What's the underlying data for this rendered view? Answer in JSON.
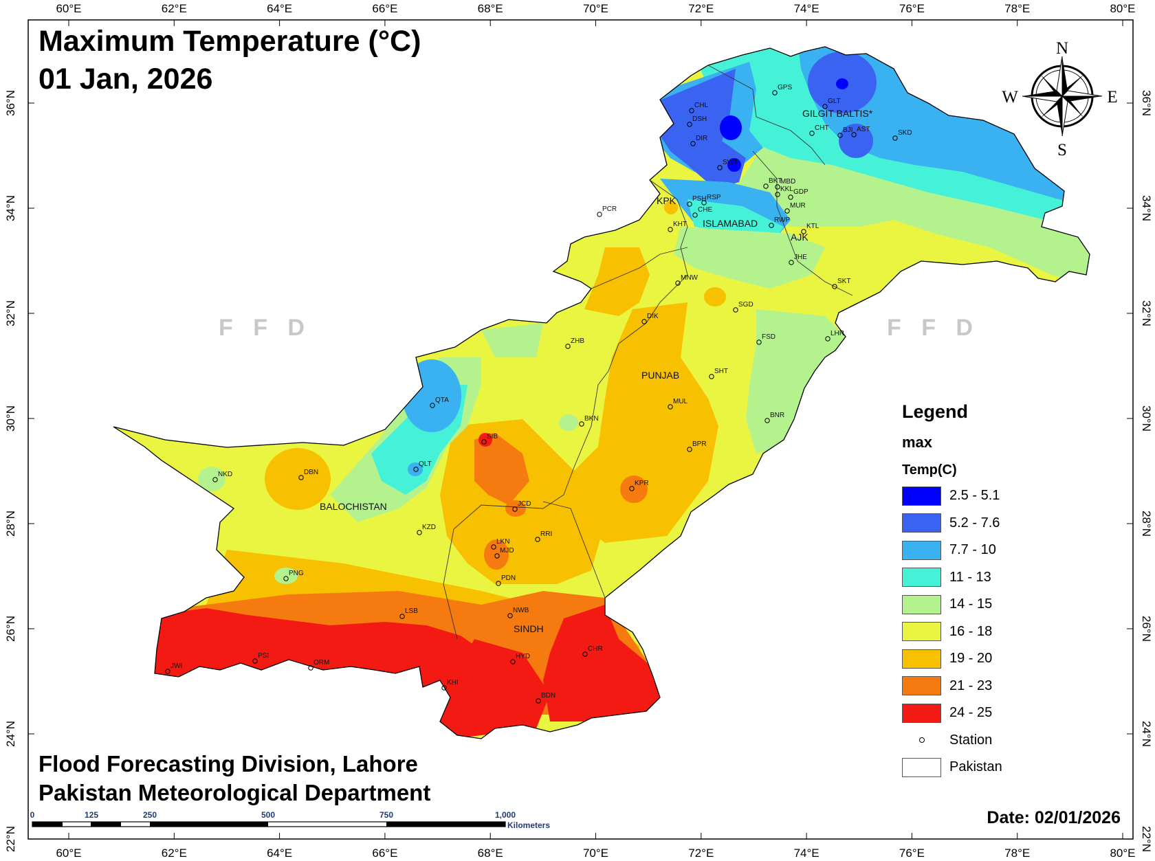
{
  "map": {
    "title_line1": "Maximum Temperature (°C)",
    "title_line2": "01 Jan, 2026",
    "credit_line1": "Flood Forecasting Division, Lahore",
    "credit_line2": "Pakistan Meteorological Department",
    "date": "Date: 02/01/2026",
    "watermark": "F F D"
  },
  "axes": {
    "longitudes": [
      "60°E",
      "62°E",
      "64°E",
      "66°E",
      "68°E",
      "70°E",
      "72°E",
      "74°E",
      "76°E",
      "78°E",
      "80°E"
    ],
    "latitudes": [
      "36°N",
      "34°N",
      "32°N",
      "30°N",
      "28°N",
      "26°N",
      "24°N",
      "22°N"
    ]
  },
  "regions": {
    "gilgit": "GILGIT BALTIS*",
    "kpk": "KPK",
    "islamabad": "ISLAMABAD",
    "ajk": "AJK",
    "punjab": "PUNJAB",
    "balochistan": "BALOCHISTAN",
    "sindh": "SINDH"
  },
  "compass": {
    "n": "N",
    "s": "S",
    "e": "E",
    "w": "W"
  },
  "legend": {
    "title": "Legend",
    "field": "max",
    "unit": "Temp(C)",
    "classes": [
      {
        "label": "2.5 - 5.1",
        "color": "#0000ff"
      },
      {
        "label": "5.2 - 7.6",
        "color": "#3b63f2"
      },
      {
        "label": "7.7 - 10",
        "color": "#3ab2f2"
      },
      {
        "label": "11 - 13",
        "color": "#45f2d8"
      },
      {
        "label": "14 - 15",
        "color": "#b4f28e"
      },
      {
        "label": "16 - 18",
        "color": "#eaf542"
      },
      {
        "label": "19 - 20",
        "color": "#f7c000"
      },
      {
        "label": "21 - 23",
        "color": "#f57a10"
      },
      {
        "label": "24 - 25",
        "color": "#f41a14"
      }
    ],
    "station": "Station",
    "country": "Pakistan"
  },
  "scale_bar": {
    "labels": [
      "0",
      "125",
      "250",
      "500",
      "750",
      "1,000"
    ],
    "unit": "Kilometers"
  },
  "stations": {
    "CHL": "CHL",
    "DSH": "DSH",
    "DIR": "DIR",
    "SWT": "SWT",
    "GPS": "GPS",
    "GLT": "GLT",
    "CHT": "CHT",
    "BJI": "BJI",
    "AST": "AST",
    "SKD": "SKD",
    "BKT": "BKT",
    "MBD": "MBD",
    "KKL": "KKL",
    "GDP": "GDP",
    "MUR": "MUR",
    "RWP": "RWP",
    "PSH": "PSH",
    "RSP": "RSP",
    "CHE": "CHE",
    "KHT": "KHT",
    "PCR": "PCR",
    "KTL": "KTL",
    "JHE": "JHE",
    "MNW": "MNW",
    "SKT": "SKT",
    "SGD": "SGD",
    "DIK": "DIK",
    "FSD": "FSD",
    "LHR": "LHR",
    "ZHB": "ZHB",
    "SHT": "SHT",
    "QTA": "QTA",
    "MUL": "MUL",
    "BKN": "BKN",
    "BNR": "BNR",
    "SIB": "SIB",
    "BPR": "BPR",
    "NKD": "NKD",
    "DBN": "DBN",
    "QLT": "QLT",
    "KPR": "KPR",
    "JCD": "JCD",
    "KZD": "KZD",
    "RRI": "RRI",
    "LKN": "LKN",
    "MJD": "MJD",
    "PNG": "PNG",
    "PDN": "PDN",
    "LSB": "LSB",
    "NWB": "NWB",
    "CHR": "CHR",
    "PSI": "PSI",
    "HYD": "HYD",
    "JWI": "JWI",
    "ORM": "ORM",
    "KHI": "KHI",
    "BDN": "BDN"
  }
}
